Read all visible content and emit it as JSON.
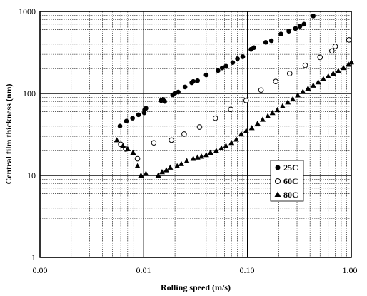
{
  "chart_data": {
    "type": "scatter",
    "title": "",
    "xlabel": "Rolling speed (m/s)",
    "ylabel": "Central film thickness (nm)",
    "xscale": "log",
    "yscale": "log",
    "xlim": [
      0.001,
      1
    ],
    "ylim": [
      1,
      1000
    ],
    "grid": "major solid, minor dotted",
    "legend_position": "center-right",
    "x_tick_labels": [
      "0.00",
      "0.01",
      "0.10",
      "1.00"
    ],
    "y_tick_labels": [
      "1",
      "10",
      "100",
      "1000"
    ],
    "series": [
      {
        "name": "25C",
        "marker": "filled-circle",
        "points": [
          [
            0.0059,
            40
          ],
          [
            0.0068,
            46
          ],
          [
            0.0078,
            50
          ],
          [
            0.0089,
            55
          ],
          [
            0.0101,
            58
          ],
          [
            0.0102,
            63
          ],
          [
            0.0105,
            66
          ],
          [
            0.0147,
            82
          ],
          [
            0.0153,
            84
          ],
          [
            0.0159,
            80
          ],
          [
            0.019,
            96
          ],
          [
            0.02,
            101
          ],
          [
            0.0215,
            104
          ],
          [
            0.025,
            120
          ],
          [
            0.029,
            135
          ],
          [
            0.03,
            140
          ],
          [
            0.033,
            143
          ],
          [
            0.04,
            168
          ],
          [
            0.052,
            190
          ],
          [
            0.057,
            205
          ],
          [
            0.062,
            215
          ],
          [
            0.072,
            238
          ],
          [
            0.08,
            265
          ],
          [
            0.09,
            280
          ],
          [
            0.108,
            345
          ],
          [
            0.115,
            362
          ],
          [
            0.15,
            420
          ],
          [
            0.17,
            440
          ],
          [
            0.21,
            530
          ],
          [
            0.25,
            575
          ],
          [
            0.29,
            620
          ],
          [
            0.32,
            660
          ],
          [
            0.35,
            700
          ],
          [
            0.43,
            880
          ]
        ]
      },
      {
        "name": "60C",
        "marker": "open-circle",
        "points": [
          [
            0.006,
            24
          ],
          [
            0.0067,
            21
          ],
          [
            0.0087,
            16
          ],
          [
            0.0125,
            25
          ],
          [
            0.0185,
            27
          ],
          [
            0.0245,
            32
          ],
          [
            0.0345,
            39
          ],
          [
            0.049,
            50
          ],
          [
            0.069,
            64
          ],
          [
            0.097,
            82
          ],
          [
            0.135,
            110
          ],
          [
            0.187,
            140
          ],
          [
            0.255,
            175
          ],
          [
            0.36,
            220
          ],
          [
            0.5,
            275
          ],
          [
            0.65,
            330
          ],
          [
            0.7,
            375
          ],
          [
            0.95,
            450
          ]
        ]
      },
      {
        "name": "80C",
        "marker": "filled-triangle",
        "points": [
          [
            0.0055,
            27
          ],
          [
            0.0063,
            23
          ],
          [
            0.007,
            21
          ],
          [
            0.0079,
            19
          ],
          [
            0.0087,
            13
          ],
          [
            0.0094,
            10
          ],
          [
            0.0105,
            10.5
          ],
          [
            0.0138,
            10
          ],
          [
            0.015,
            11
          ],
          [
            0.0165,
            11.6
          ],
          [
            0.018,
            12.5
          ],
          [
            0.021,
            13
          ],
          [
            0.023,
            13.8
          ],
          [
            0.026,
            15
          ],
          [
            0.03,
            16
          ],
          [
            0.033,
            16.6
          ],
          [
            0.036,
            17
          ],
          [
            0.04,
            17.8
          ],
          [
            0.044,
            19
          ],
          [
            0.05,
            20
          ],
          [
            0.056,
            21.5
          ],
          [
            0.062,
            23
          ],
          [
            0.07,
            25
          ],
          [
            0.078,
            27.5
          ],
          [
            0.087,
            32
          ],
          [
            0.097,
            35
          ],
          [
            0.11,
            38
          ],
          [
            0.125,
            43
          ],
          [
            0.14,
            48
          ],
          [
            0.157,
            53
          ],
          [
            0.174,
            58
          ],
          [
            0.194,
            63
          ],
          [
            0.218,
            70
          ],
          [
            0.245,
            78
          ],
          [
            0.273,
            85
          ],
          [
            0.305,
            95
          ],
          [
            0.342,
            105
          ],
          [
            0.383,
            115
          ],
          [
            0.43,
            125
          ],
          [
            0.48,
            137
          ],
          [
            0.538,
            150
          ],
          [
            0.6,
            162
          ],
          [
            0.67,
            175
          ],
          [
            0.75,
            188
          ],
          [
            0.84,
            205
          ],
          [
            0.94,
            225
          ],
          [
            1.0,
            240
          ]
        ]
      }
    ]
  }
}
